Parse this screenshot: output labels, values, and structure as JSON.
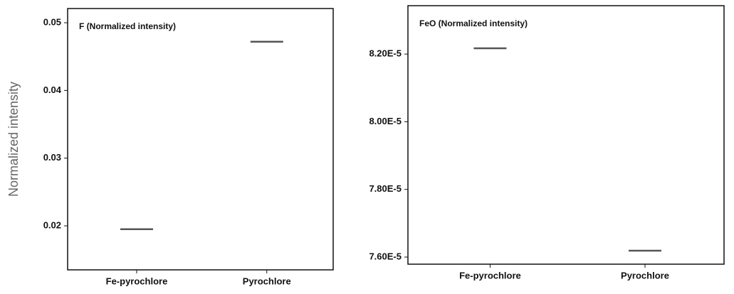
{
  "chart_data": [
    {
      "type": "dash",
      "title": "F (Normalized intensity)",
      "y_label": "Normalized intensity",
      "categories": [
        "Fe-pyrochlore",
        "Pyrochlore"
      ],
      "values": [
        0.0195,
        0.0472
      ],
      "color": "#555555",
      "ylim": [
        0.0135,
        0.0521
      ],
      "yticks": [
        0.02,
        0.03,
        0.04,
        0.05
      ]
    },
    {
      "type": "dash",
      "title": "FeO (Normalized intensity)",
      "categories": [
        "Fe-pyrochlore",
        "Pyrochlore"
      ],
      "values": [
        8.217e-05,
        7.619e-05
      ],
      "color": "#555555",
      "ylim": [
        7.579e-05,
        8.343e-05
      ],
      "yticks": [
        {
          "value": 7.6e-05,
          "label": "7.60E-5"
        },
        {
          "value": 7.8e-05,
          "label": "7.80E-5"
        },
        {
          "value": 8e-05,
          "label": "8.00E-5"
        },
        {
          "value": 8.2e-05,
          "label": "8.20E-5"
        }
      ]
    }
  ]
}
